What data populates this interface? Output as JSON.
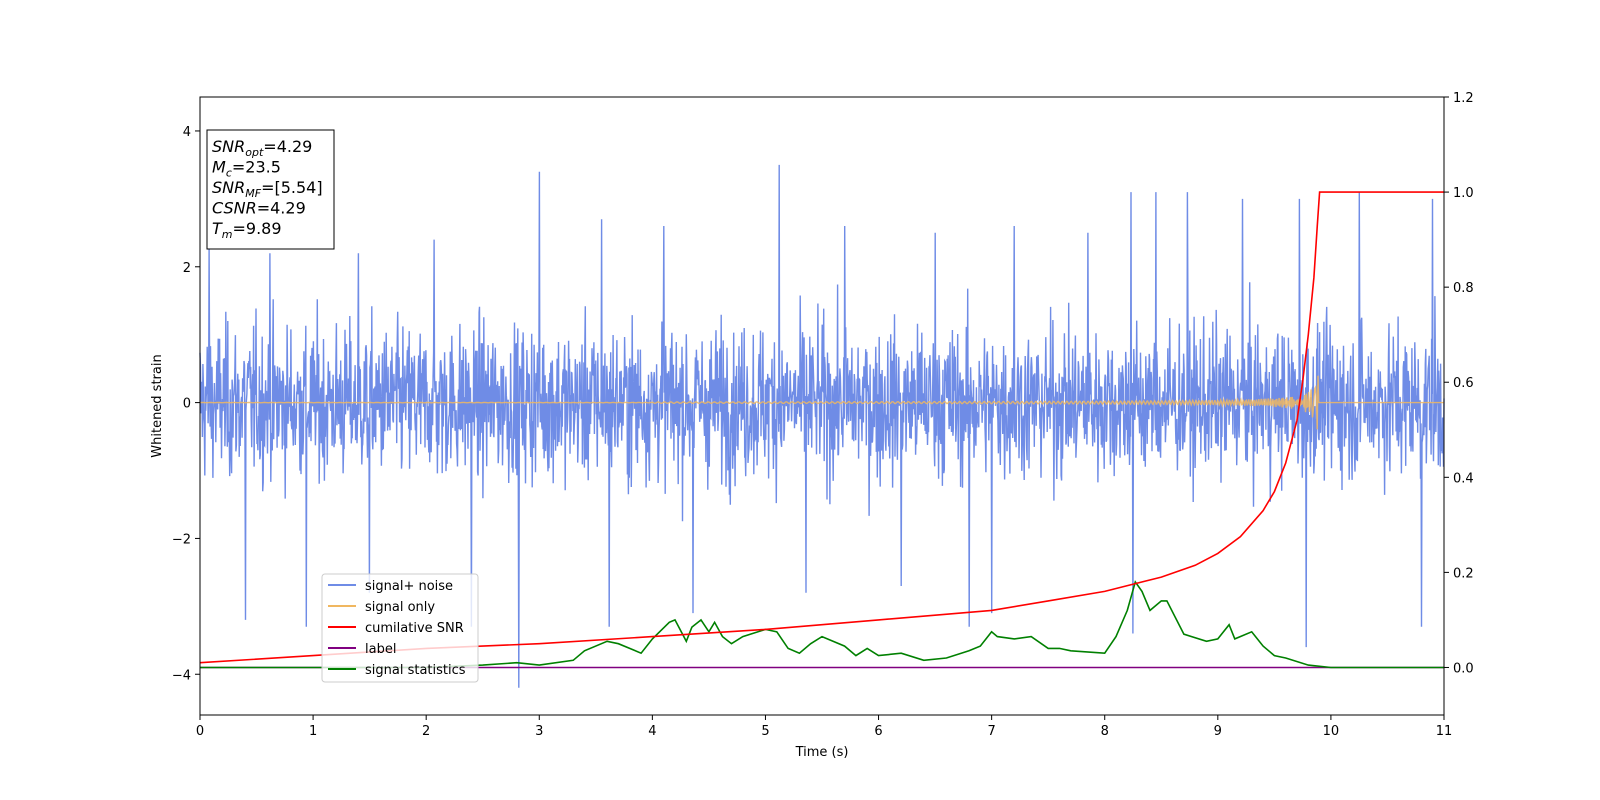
{
  "chart_data": {
    "type": "line",
    "xlabel": "Time (s)",
    "ylabel": "Whitened strain",
    "xlim": [
      0,
      11
    ],
    "ylim": [
      -4.6,
      4.5
    ],
    "y2lim": [
      -0.1,
      1.2
    ],
    "x_ticks": [
      "0",
      "1",
      "2",
      "3",
      "4",
      "5",
      "6",
      "7",
      "8",
      "9",
      "10",
      "11"
    ],
    "y_ticks": [
      "−4",
      "−2",
      "0",
      "2",
      "4"
    ],
    "y_tick_values": [
      -4,
      -2,
      0,
      2,
      4
    ],
    "y2_ticks": [
      "0.0",
      "0.2",
      "0.4",
      "0.6",
      "0.8",
      "1.0",
      "1.2"
    ],
    "y2_tick_values": [
      0,
      0.2,
      0.4,
      0.6,
      0.8,
      1.0,
      1.2
    ],
    "grid": false,
    "legend_position": "lower-left",
    "colors": {
      "signal_noise": "#6f8ce6",
      "signal_only": "#f0b760",
      "cumulative_snr": "#ff0000",
      "label": "#800080",
      "signal_statistics": "#008000"
    },
    "series": [
      {
        "name": "signal+ noise",
        "axis": "left",
        "description_kind": "noise",
        "envelope_typical": [
          -1.5,
          1.5
        ],
        "peaks_high": [
          [
            0.08,
            2.3
          ],
          [
            0.62,
            2.2
          ],
          [
            1.4,
            2.2
          ],
          [
            2.07,
            2.4
          ],
          [
            3.0,
            3.4
          ],
          [
            3.55,
            2.7
          ],
          [
            4.1,
            2.6
          ],
          [
            5.12,
            3.5
          ],
          [
            5.7,
            2.6
          ],
          [
            6.5,
            2.5
          ],
          [
            7.2,
            2.6
          ],
          [
            7.85,
            2.5
          ],
          [
            8.23,
            3.1
          ],
          [
            8.45,
            3.1
          ],
          [
            8.73,
            3.1
          ],
          [
            9.22,
            3.0
          ],
          [
            9.72,
            3.0
          ],
          [
            10.25,
            3.1
          ],
          [
            10.9,
            3.0
          ]
        ],
        "peaks_low": [
          [
            0.4,
            -3.2
          ],
          [
            0.94,
            -3.3
          ],
          [
            1.5,
            -2.8
          ],
          [
            2.4,
            -3.3
          ],
          [
            2.82,
            -4.2
          ],
          [
            3.62,
            -3.3
          ],
          [
            4.36,
            -3.1
          ],
          [
            5.36,
            -2.8
          ],
          [
            6.2,
            -2.7
          ],
          [
            6.8,
            -3.3
          ],
          [
            7.0,
            -3.1
          ],
          [
            8.25,
            -3.4
          ],
          [
            9.78,
            -3.6
          ],
          [
            10.8,
            -3.3
          ]
        ]
      },
      {
        "name": "signal only",
        "axis": "left",
        "chirp_end_time": 9.89,
        "chirp_peak_amplitude": 0.8
      },
      {
        "name": "cumilative SNR",
        "axis": "right",
        "x": [
          0,
          1,
          2,
          3,
          4,
          5,
          6,
          7,
          7.5,
          8,
          8.5,
          8.8,
          9.0,
          9.2,
          9.4,
          9.5,
          9.6,
          9.7,
          9.75,
          9.8,
          9.85,
          9.88,
          9.9,
          10.2,
          11
        ],
        "y": [
          0.01,
          0.025,
          0.04,
          0.05,
          0.065,
          0.08,
          0.1,
          0.12,
          0.14,
          0.16,
          0.19,
          0.215,
          0.24,
          0.275,
          0.33,
          0.37,
          0.43,
          0.52,
          0.6,
          0.7,
          0.82,
          0.93,
          1.0,
          1.0,
          1.0
        ]
      },
      {
        "name": "label",
        "axis": "right",
        "x": [
          0,
          11
        ],
        "y": [
          0.0,
          0.0
        ]
      },
      {
        "name": "signal statistics",
        "axis": "right",
        "x": [
          0,
          2.0,
          2.5,
          2.8,
          3.0,
          3.3,
          3.4,
          3.6,
          3.7,
          3.8,
          3.9,
          4.0,
          4.15,
          4.2,
          4.3,
          4.35,
          4.43,
          4.5,
          4.55,
          4.62,
          4.7,
          4.8,
          5.0,
          5.1,
          5.2,
          5.3,
          5.4,
          5.5,
          5.7,
          5.8,
          5.9,
          6.0,
          6.2,
          6.4,
          6.6,
          6.8,
          6.9,
          7.0,
          7.05,
          7.2,
          7.35,
          7.5,
          7.6,
          7.7,
          8.0,
          8.1,
          8.2,
          8.27,
          8.33,
          8.4,
          8.5,
          8.55,
          8.7,
          8.9,
          9.0,
          9.1,
          9.15,
          9.3,
          9.4,
          9.5,
          9.6,
          9.8,
          10.0,
          10.5,
          11
        ],
        "y": [
          0.0,
          0.0,
          0.005,
          0.01,
          0.005,
          0.015,
          0.035,
          0.055,
          0.05,
          0.04,
          0.03,
          0.06,
          0.095,
          0.1,
          0.055,
          0.085,
          0.1,
          0.075,
          0.095,
          0.065,
          0.05,
          0.065,
          0.08,
          0.075,
          0.04,
          0.03,
          0.05,
          0.065,
          0.045,
          0.025,
          0.04,
          0.025,
          0.03,
          0.015,
          0.02,
          0.035,
          0.045,
          0.075,
          0.065,
          0.06,
          0.065,
          0.04,
          0.04,
          0.035,
          0.03,
          0.065,
          0.12,
          0.18,
          0.16,
          0.12,
          0.14,
          0.14,
          0.07,
          0.055,
          0.06,
          0.09,
          0.06,
          0.075,
          0.045,
          0.025,
          0.02,
          0.005,
          0.0,
          0.0,
          0.0
        ]
      }
    ],
    "annotation_box": {
      "lines": [
        {
          "main": "SNR",
          "sub": "opt",
          "rest": "=4.29"
        },
        {
          "main": "M",
          "sub": "c",
          "rest": "=23.5"
        },
        {
          "main": "SNR",
          "sub": "MF",
          "rest": "=[5.54]"
        },
        {
          "main": "CSNR",
          "sub": "",
          "rest": "=4.29"
        },
        {
          "main": "T",
          "sub": "m",
          "rest": "=9.89"
        }
      ]
    }
  }
}
